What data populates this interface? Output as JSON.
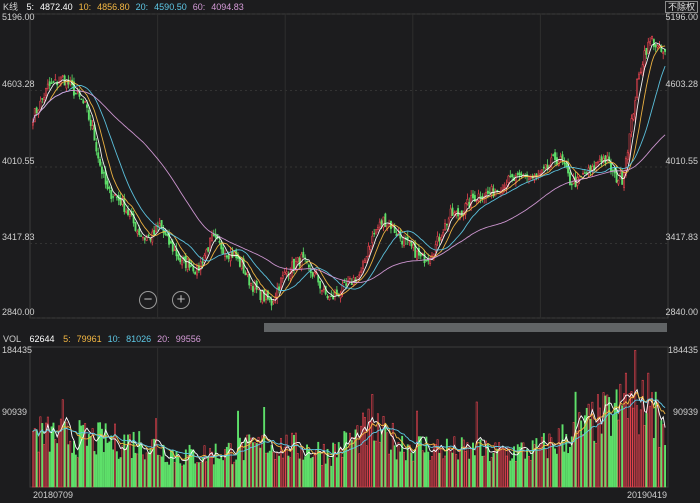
{
  "header": {
    "kline_label": "K线",
    "ma": [
      {
        "label": "5:",
        "value": "4872.40",
        "color": "#ffffff"
      },
      {
        "label": "10:",
        "value": "4856.80",
        "color": "#f5b843"
      },
      {
        "label": "20:",
        "value": "4590.50",
        "color": "#5ec8e6"
      },
      {
        "label": "60:",
        "value": "4094.83",
        "color": "#d59bd8"
      }
    ],
    "adjust_label": "不除权"
  },
  "vol_header": {
    "label": "VOL",
    "value": "62644",
    "ma": [
      {
        "label": "5:",
        "value": "79961",
        "color": "#f5b843"
      },
      {
        "label": "10:",
        "value": "81026",
        "color": "#5ec8e6"
      },
      {
        "label": "20:",
        "value": "99556",
        "color": "#d59bd8"
      }
    ]
  },
  "zoom": {
    "out_symbol": "−",
    "in_symbol": "+"
  },
  "chart_data": {
    "type": "candlestick",
    "price_axis": {
      "ticks": [
        "5196.00",
        "4603.28",
        "4010.55",
        "3417.83",
        "2840.00"
      ],
      "range": [
        2840.0,
        5196.0
      ]
    },
    "volume_axis": {
      "ticks": [
        "184435",
        "90939"
      ],
      "max": 184435
    },
    "dates": {
      "start": "20180709",
      "end": "20190419"
    },
    "colors": {
      "up": "#e9434f",
      "down": "#5ee06a",
      "background": "#1c1c1e",
      "grid": "#3a3a3a"
    },
    "price_anchors": [
      [
        0,
        4400
      ],
      [
        4,
        4500
      ],
      [
        8,
        4630
      ],
      [
        12,
        4660
      ],
      [
        16,
        4700
      ],
      [
        20,
        4640
      ],
      [
        24,
        4560
      ],
      [
        28,
        4480
      ],
      [
        32,
        4300
      ],
      [
        36,
        4030
      ],
      [
        40,
        3820
      ],
      [
        44,
        3790
      ],
      [
        48,
        3730
      ],
      [
        52,
        3630
      ],
      [
        56,
        3520
      ],
      [
        60,
        3460
      ],
      [
        64,
        3470
      ],
      [
        68,
        3560
      ],
      [
        72,
        3440
      ],
      [
        76,
        3360
      ],
      [
        80,
        3260
      ],
      [
        84,
        3270
      ],
      [
        88,
        3200
      ],
      [
        92,
        3330
      ],
      [
        96,
        3450
      ],
      [
        100,
        3410
      ],
      [
        104,
        3350
      ],
      [
        108,
        3330
      ],
      [
        112,
        3240
      ],
      [
        116,
        3130
      ],
      [
        120,
        3050
      ],
      [
        124,
        3000
      ],
      [
        128,
        2960
      ],
      [
        132,
        3100
      ],
      [
        136,
        3200
      ],
      [
        140,
        3250
      ],
      [
        144,
        3300
      ],
      [
        148,
        3210
      ],
      [
        152,
        3160
      ],
      [
        156,
        3030
      ],
      [
        160,
        2990
      ],
      [
        164,
        3040
      ],
      [
        168,
        3080
      ],
      [
        172,
        3140
      ],
      [
        176,
        3180
      ],
      [
        180,
        3400
      ],
      [
        184,
        3520
      ],
      [
        188,
        3600
      ],
      [
        192,
        3560
      ],
      [
        196,
        3480
      ],
      [
        200,
        3420
      ],
      [
        204,
        3370
      ],
      [
        208,
        3300
      ],
      [
        212,
        3320
      ],
      [
        216,
        3400
      ],
      [
        220,
        3530
      ],
      [
        224,
        3640
      ],
      [
        228,
        3640
      ],
      [
        232,
        3700
      ],
      [
        236,
        3770
      ],
      [
        240,
        3800
      ],
      [
        244,
        3800
      ],
      [
        248,
        3830
      ],
      [
        252,
        3880
      ],
      [
        256,
        3910
      ],
      [
        260,
        3910
      ],
      [
        264,
        3950
      ],
      [
        268,
        3920
      ],
      [
        272,
        3940
      ],
      [
        276,
        4000
      ],
      [
        280,
        4080
      ],
      [
        284,
        4050
      ],
      [
        288,
        3900
      ],
      [
        292,
        3890
      ],
      [
        296,
        3960
      ],
      [
        300,
        3980
      ],
      [
        304,
        4080
      ],
      [
        308,
        4060
      ],
      [
        312,
        3930
      ],
      [
        316,
        3920
      ],
      [
        320,
        4250
      ],
      [
        324,
        4650
      ],
      [
        328,
        4900
      ],
      [
        332,
        5000
      ],
      [
        336,
        4910
      ],
      [
        339,
        4880
      ]
    ],
    "volume_anchors": [
      [
        0,
        70000
      ],
      [
        30,
        62000
      ],
      [
        60,
        58000
      ],
      [
        80,
        40000
      ],
      [
        100,
        45000
      ],
      [
        130,
        55000
      ],
      [
        160,
        45000
      ],
      [
        180,
        75000
      ],
      [
        200,
        55000
      ],
      [
        220,
        50000
      ],
      [
        240,
        45000
      ],
      [
        270,
        48000
      ],
      [
        290,
        70000
      ],
      [
        300,
        85000
      ],
      [
        310,
        95000
      ],
      [
        320,
        110000
      ],
      [
        330,
        100000
      ],
      [
        339,
        80000
      ]
    ],
    "volume_spikes": [
      {
        "i": 16,
        "v": 115000
      },
      {
        "i": 66,
        "v": 90000
      },
      {
        "i": 110,
        "v": 100000
      },
      {
        "i": 124,
        "v": 105000
      },
      {
        "i": 182,
        "v": 122000
      },
      {
        "i": 206,
        "v": 100000
      },
      {
        "i": 238,
        "v": 112000
      },
      {
        "i": 291,
        "v": 125000
      },
      {
        "i": 318,
        "v": 150000
      },
      {
        "i": 323,
        "v": 180000
      },
      {
        "i": 330,
        "v": 150000
      },
      {
        "i": 334,
        "v": 125000
      }
    ]
  }
}
